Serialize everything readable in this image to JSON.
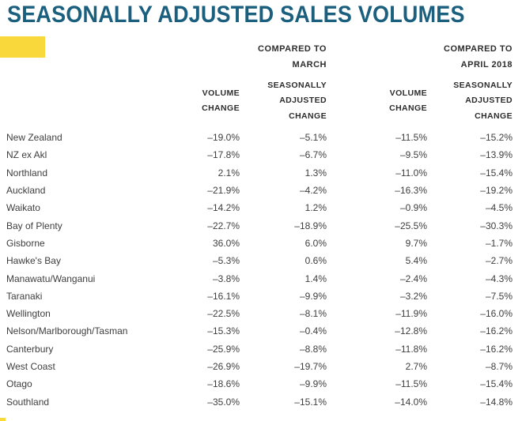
{
  "title": "SEASONALLY ADJUSTED SALES VOLUMES",
  "colors": {
    "title_teal": "#1A5F7E",
    "highlight_yellow": "#F9D83C",
    "text_dark": "#2D2D2D",
    "text_body": "#3E3E3E"
  },
  "table": {
    "group_headers": [
      {
        "line1": "COMPARED TO",
        "line2": "MARCH"
      },
      {
        "line1": "COMPARED TO",
        "line2": "APRIL 2018"
      }
    ],
    "column_headers": [
      {
        "lines": [
          "VOLUME",
          "CHANGE"
        ]
      },
      {
        "lines": [
          "SEASONALLY",
          "ADJUSTED",
          "CHANGE"
        ]
      },
      {
        "lines": [
          "VOLUME",
          "CHANGE"
        ]
      },
      {
        "lines": [
          "SEASONALLY",
          "ADJUSTED",
          "CHANGE"
        ]
      }
    ],
    "rows": [
      {
        "region": "New Zealand",
        "values": [
          "–19.0%",
          "–5.1%",
          "–11.5%",
          "–15.2%"
        ]
      },
      {
        "region": "NZ ex Akl",
        "values": [
          "–17.8%",
          "–6.7%",
          "–9.5%",
          "–13.9%"
        ]
      },
      {
        "region": "Northland",
        "values": [
          "2.1%",
          "1.3%",
          "–11.0%",
          "–15.4%"
        ]
      },
      {
        "region": "Auckland",
        "values": [
          "–21.9%",
          "–4.2%",
          "–16.3%",
          "–19.2%"
        ]
      },
      {
        "region": "Waikato",
        "values": [
          "–14.2%",
          "1.2%",
          "–0.9%",
          "–4.5%"
        ]
      },
      {
        "region": "Bay of Plenty",
        "values": [
          "–22.7%",
          "–18.9%",
          "–25.5%",
          "–30.3%"
        ]
      },
      {
        "region": "Gisborne",
        "values": [
          "36.0%",
          "6.0%",
          "9.7%",
          "–1.7%"
        ]
      },
      {
        "region": "Hawke's Bay",
        "values": [
          "–5.3%",
          "0.6%",
          "5.4%",
          "–2.7%"
        ]
      },
      {
        "region": "Manawatu/Wanganui",
        "values": [
          "–3.8%",
          "1.4%",
          "–2.4%",
          "–4.3%"
        ]
      },
      {
        "region": "Taranaki",
        "values": [
          "–16.1%",
          "–9.9%",
          "–3.2%",
          "–7.5%"
        ]
      },
      {
        "region": "Wellington",
        "values": [
          "–22.5%",
          "–8.1%",
          "–11.9%",
          "–16.0%"
        ]
      },
      {
        "region": "Nelson/Marlborough/Tasman",
        "values": [
          "–15.3%",
          "–0.4%",
          "–12.8%",
          "–16.2%"
        ]
      },
      {
        "region": "Canterbury",
        "values": [
          "–25.9%",
          "–8.8%",
          "–11.8%",
          "–16.2%"
        ]
      },
      {
        "region": "West Coast",
        "values": [
          "–26.9%",
          "–19.7%",
          "2.7%",
          "–8.7%"
        ]
      },
      {
        "region": "Otago",
        "values": [
          "–18.6%",
          "–9.9%",
          "–11.5%",
          "–15.4%"
        ]
      },
      {
        "region": "Southland",
        "values": [
          "–35.0%",
          "–15.1%",
          "–14.0%",
          "–14.8%"
        ]
      }
    ]
  },
  "chart_data": {
    "type": "table",
    "title": "SEASONALLY ADJUSTED SALES VOLUMES",
    "column_groups": [
      "COMPARED TO MARCH",
      "COMPARED TO APRIL 2018"
    ],
    "categories": [
      "New Zealand",
      "NZ ex Akl",
      "Northland",
      "Auckland",
      "Waikato",
      "Bay of Plenty",
      "Gisborne",
      "Hawke's Bay",
      "Manawatu/Wanganui",
      "Taranaki",
      "Wellington",
      "Nelson/Marlborough/Tasman",
      "Canterbury",
      "West Coast",
      "Otago",
      "Southland"
    ],
    "series": [
      {
        "name": "Volume change vs March (%)",
        "values": [
          -19.0,
          -17.8,
          2.1,
          -21.9,
          -14.2,
          -22.7,
          36.0,
          -5.3,
          -3.8,
          -16.1,
          -22.5,
          -15.3,
          -25.9,
          -26.9,
          -18.6,
          -35.0
        ]
      },
      {
        "name": "Seasonally adjusted change vs March (%)",
        "values": [
          -5.1,
          -6.7,
          1.3,
          -4.2,
          1.2,
          -18.9,
          6.0,
          0.6,
          1.4,
          -9.9,
          -8.1,
          -0.4,
          -8.8,
          -19.7,
          -9.9,
          -15.1
        ]
      },
      {
        "name": "Volume change vs April 2018 (%)",
        "values": [
          -11.5,
          -9.5,
          -11.0,
          -16.3,
          -0.9,
          -25.5,
          9.7,
          5.4,
          -2.4,
          -3.2,
          -11.9,
          -12.8,
          -11.8,
          2.7,
          -11.5,
          -14.0
        ]
      },
      {
        "name": "Seasonally adjusted change vs April 2018 (%)",
        "values": [
          -15.2,
          -13.9,
          -15.4,
          -19.2,
          -4.5,
          -30.3,
          -1.7,
          -2.7,
          -4.3,
          -7.5,
          -16.0,
          -16.2,
          -16.2,
          -8.7,
          -15.4,
          -14.8
        ]
      }
    ]
  }
}
